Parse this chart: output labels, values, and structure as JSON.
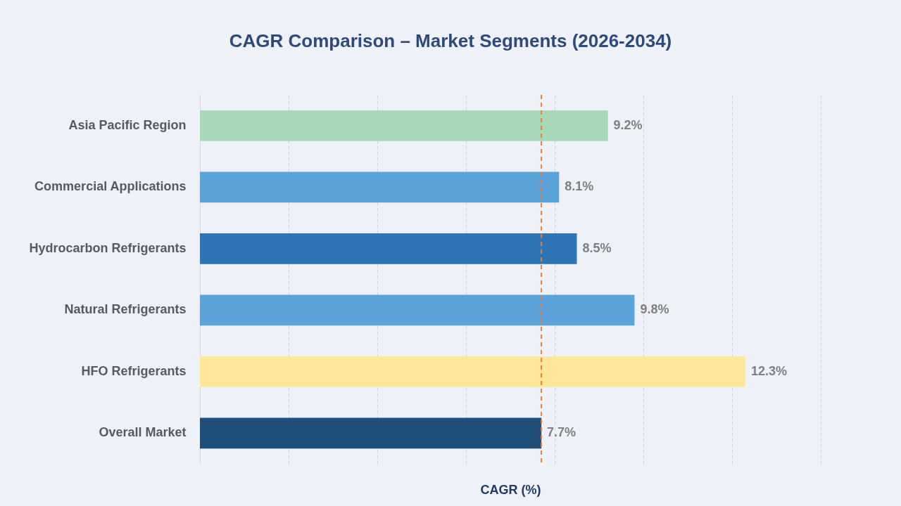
{
  "chart_data": {
    "type": "bar",
    "orientation": "horizontal",
    "title": "CAGR Comparison – Market Segments (2026-2034)",
    "xlabel": "CAGR (%)",
    "categories": [
      "Asia Pacific Region",
      "Commercial Applications",
      "Hydrocarbon Refrigerants",
      "Natural Refrigerants",
      "HFO Refrigerants",
      "Overall Market"
    ],
    "values": [
      9.2,
      8.1,
      8.5,
      9.8,
      12.3,
      7.7
    ],
    "value_labels": [
      "9.2%",
      "8.1%",
      "8.5%",
      "9.8%",
      "12.3%",
      "7.7%"
    ],
    "colors": [
      "#a9d8b8",
      "#5ba3d9",
      "#2e75b6",
      "#5ba3d9",
      "#ffe699",
      "#1f4e79"
    ],
    "xlim": [
      0,
      14
    ],
    "xticks": [
      {
        "value": 0,
        "label": null
      },
      {
        "value": 2,
        "label": null
      },
      {
        "value": 4,
        "label": null
      },
      {
        "value": 6,
        "label": null
      },
      {
        "value": 8,
        "label": null
      },
      {
        "value": 10,
        "label": null
      },
      {
        "value": 12,
        "label": null
      },
      {
        "value": 14,
        "label": null
      }
    ],
    "tick_labels": "y",
    "grid": "x",
    "ref_lines": [
      {
        "axis": "x",
        "value": 7.7,
        "color": "#ed7d31",
        "line_style": "dashed"
      }
    ]
  }
}
